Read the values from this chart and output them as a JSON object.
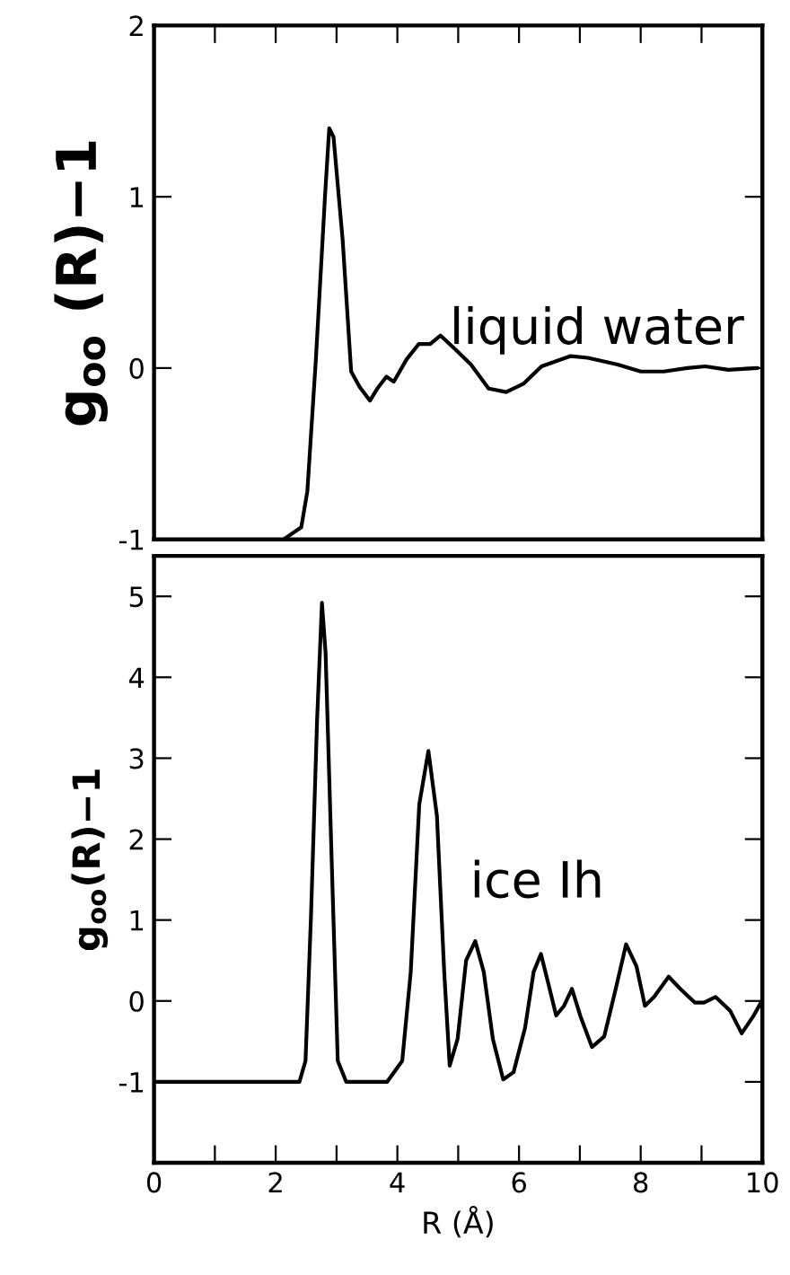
{
  "chart_data": [
    {
      "type": "line",
      "ylabel": "g$_{oo}$ (R)−1",
      "annotations": [
        "liquid water"
      ],
      "tick_labels": "y",
      "xlim": [
        0,
        10
      ],
      "xticks": [
        0,
        1,
        2,
        3,
        4,
        5,
        6,
        7,
        8,
        9,
        10
      ],
      "ylim": [
        -1,
        2
      ],
      "yticks": [
        {
          "value": -1,
          "label": "-1"
        },
        0,
        1,
        2
      ],
      "series": [
        {
          "color": "#000000",
          "x": [
            2.13,
            2.42,
            2.52,
            2.66,
            2.81,
            2.88,
            2.95,
            3.1,
            3.24,
            3.38,
            3.55,
            3.67,
            3.82,
            3.94,
            4.15,
            4.35,
            4.54,
            4.71,
            4.92,
            5.21,
            5.5,
            5.79,
            6.08,
            6.37,
            6.85,
            7.13,
            7.62,
            8.0,
            8.38,
            8.77,
            9.06,
            9.44,
            9.92
          ],
          "values": [
            -1.0,
            -0.93,
            -0.72,
            0.05,
            1.0,
            1.4,
            1.35,
            0.75,
            -0.02,
            -0.11,
            -0.19,
            -0.12,
            -0.05,
            -0.08,
            0.05,
            0.14,
            0.14,
            0.19,
            0.12,
            0.02,
            -0.12,
            -0.14,
            -0.09,
            0.01,
            0.07,
            0.06,
            0.02,
            -0.02,
            -0.02,
            0,
            0.01,
            -0.01,
            0
          ]
        }
      ]
    },
    {
      "type": "line",
      "ylabel": "g$_{oo}$(R)−1",
      "xlabel": "R (Å)",
      "annotations": [
        "ice Ih"
      ],
      "xlim": [
        0,
        10
      ],
      "xticks": [
        0,
        {
          "value": 1,
          "label": null
        },
        2,
        {
          "value": 3,
          "label": null
        },
        4,
        {
          "value": 5,
          "label": null
        },
        6,
        {
          "value": 7,
          "label": null
        },
        8,
        {
          "value": 9,
          "label": null
        },
        10
      ],
      "ylim": [
        -2,
        5.5
      ],
      "yticks": [
        {
          "value": -1,
          "label": "-1"
        },
        0,
        1,
        2,
        3,
        4,
        5
      ],
      "series": [
        {
          "color": "#000000",
          "x": [
            0,
            2.39,
            2.49,
            2.58,
            2.68,
            2.76,
            2.82,
            2.92,
            3.02,
            3.16,
            3.83,
            4.08,
            4.22,
            4.36,
            4.51,
            4.65,
            4.77,
            4.86,
            4.99,
            5.13,
            5.28,
            5.42,
            5.57,
            5.74,
            5.91,
            6.1,
            6.24,
            6.36,
            6.48,
            6.61,
            6.74,
            6.87,
            7.01,
            7.2,
            7.4,
            7.59,
            7.76,
            7.93,
            8.07,
            8.22,
            8.46,
            8.65,
            8.89,
            9.04,
            9.23,
            9.47,
            9.66,
            9.85,
            10
          ],
          "values": [
            -1,
            -1,
            -0.74,
            1.05,
            3.47,
            4.92,
            4.3,
            1.74,
            -0.74,
            -1,
            -1,
            -0.74,
            0.36,
            2.43,
            3.09,
            2.29,
            0.36,
            -0.8,
            -0.47,
            0.5,
            0.74,
            0.36,
            -0.47,
            -0.97,
            -0.88,
            -0.33,
            0.36,
            0.58,
            0.22,
            -0.18,
            -0.06,
            0.15,
            -0.19,
            -0.57,
            -0.44,
            0.15,
            0.7,
            0.43,
            -0.06,
            0.05,
            0.3,
            0.15,
            -0.02,
            -0.02,
            0.05,
            -0.12,
            -0.4,
            -0.19,
            0.01
          ]
        }
      ]
    }
  ]
}
